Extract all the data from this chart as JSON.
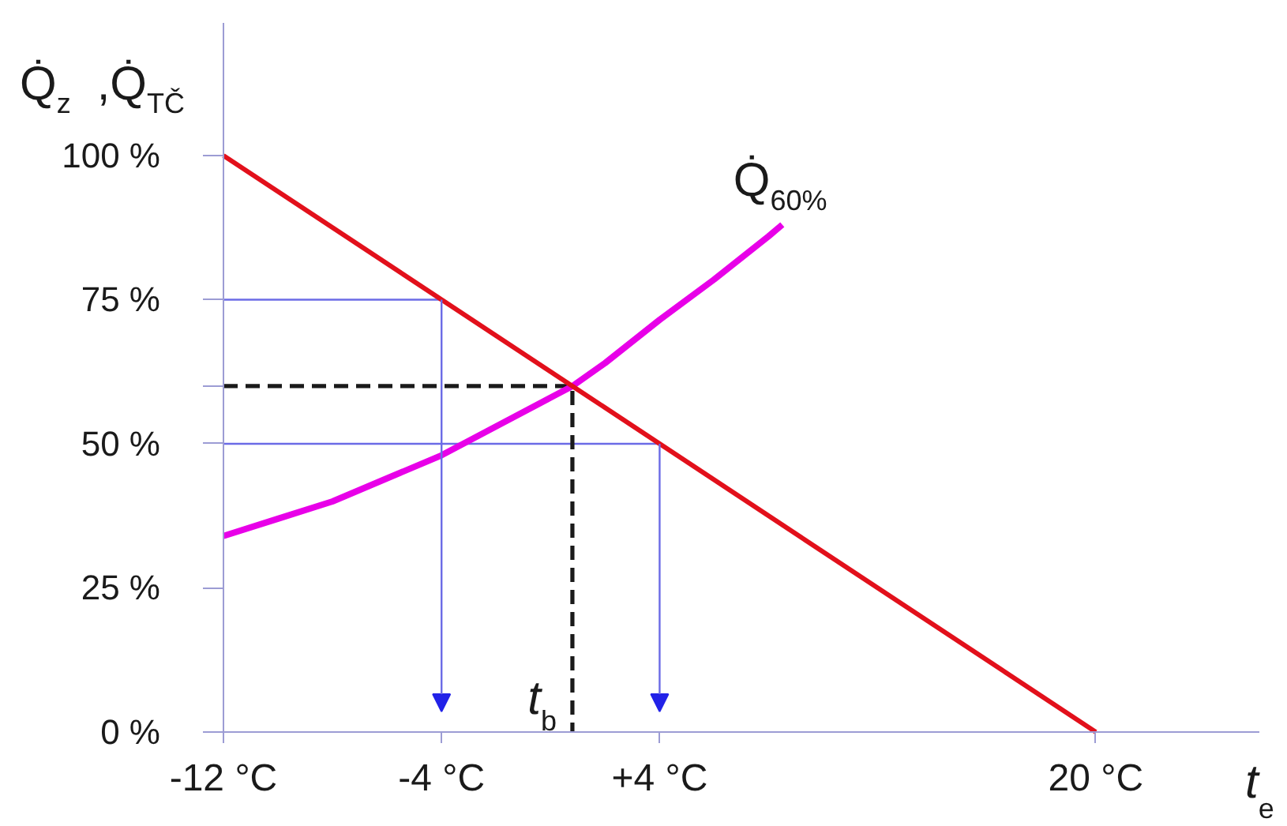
{
  "chart_data": {
    "type": "line",
    "xlabel": "t$_{e}$",
    "ylabel": "Q̇$_{z}$ ,Q̇$_{TČ}$",
    "xlim": [
      -12,
      26
    ],
    "ylim": [
      0,
      123
    ],
    "xticks": [
      {
        "value": -12,
        "label": "-12 °C"
      },
      {
        "value": -4,
        "label": "-4 °C"
      },
      {
        "value": 4,
        "label": "+4 °C"
      },
      {
        "value": 20,
        "label": "20 °C"
      }
    ],
    "yticks": [
      {
        "value": 0,
        "label": "0 %"
      },
      {
        "value": 25,
        "label": "25 %"
      },
      {
        "value": 50,
        "label": "50 %"
      },
      {
        "value": 60,
        "label": null
      },
      {
        "value": 75,
        "label": "75 %"
      },
      {
        "value": 100,
        "label": "100 %"
      }
    ],
    "series": [
      {
        "color": "#6b6be6",
        "x": [
          -12,
          -4
        ],
        "values": [
          75,
          75
        ]
      },
      {
        "color": "#6b6be6",
        "x": [
          -12,
          4
        ],
        "values": [
          50,
          50
        ]
      },
      {
        "color": "#1a1a1a",
        "x": [
          -12,
          0.8,
          0.8
        ],
        "values": [
          60,
          60,
          0
        ],
        "line_style": "dashed"
      },
      {
        "name": "Q̇$_{60%}$",
        "color": "#e800e8",
        "x": [
          -12,
          -10,
          -8,
          -6,
          -4,
          -2,
          0,
          0.8,
          2,
          4,
          6,
          8,
          8.5
        ],
        "values": [
          34,
          37,
          40,
          44,
          48,
          53,
          58,
          60,
          64,
          71.5,
          78.5,
          86,
          88
        ]
      },
      {
        "color": "#e2101b",
        "x": [
          -12,
          20
        ],
        "values": [
          100,
          0
        ]
      }
    ],
    "annotations": [
      {
        "text": "t$_{b}$",
        "x": 0.8,
        "y": 0
      }
    ]
  }
}
